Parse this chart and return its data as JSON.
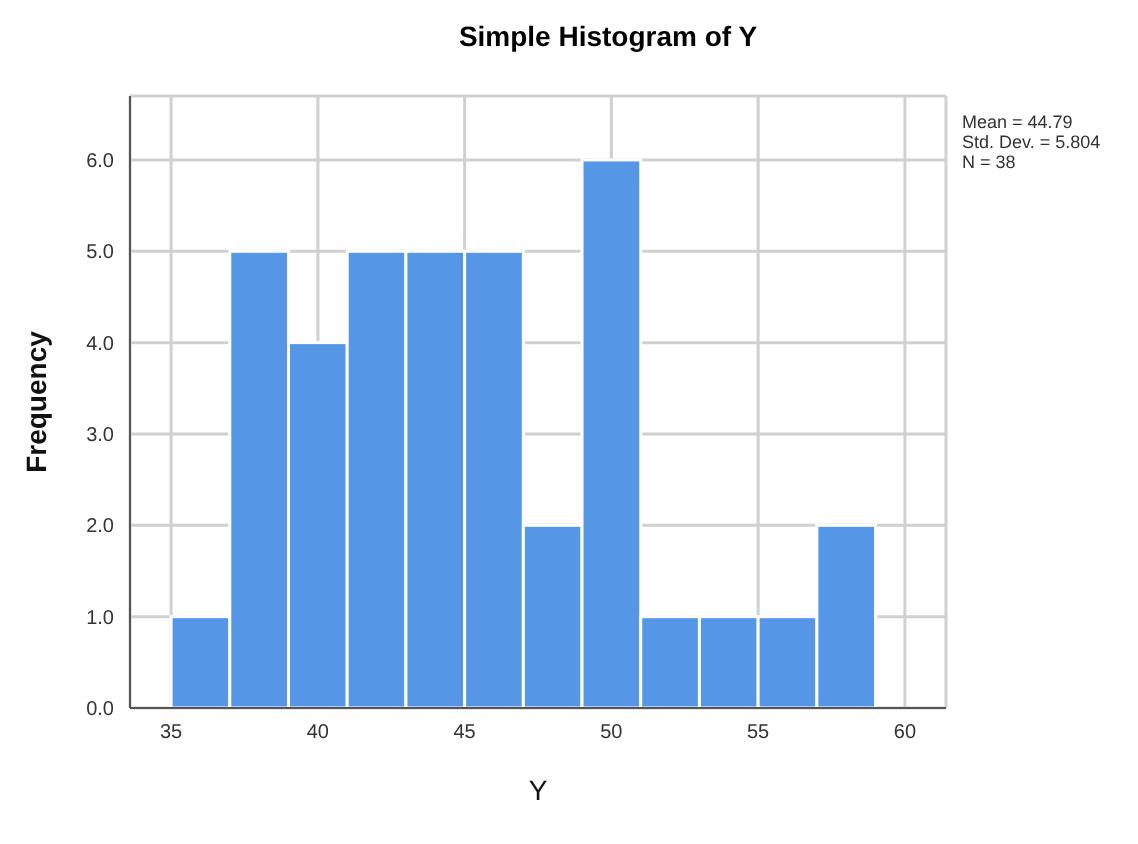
{
  "chart_data": {
    "type": "histogram",
    "title": "Simple Histogram of Y",
    "xlabel": "Y",
    "ylabel": "Frequency",
    "bins": [
      35,
      37,
      39,
      41,
      43,
      45,
      47,
      49,
      51,
      53,
      55,
      57,
      59
    ],
    "values": [
      1,
      5,
      4,
      5,
      5,
      5,
      2,
      6,
      1,
      1,
      1,
      2
    ],
    "color": "#5596e6",
    "xlim": [
      33.6,
      61.4
    ],
    "xticks": [
      35,
      40,
      45,
      50,
      55,
      60
    ],
    "ylim": [
      0,
      6.7
    ],
    "yticks": [
      {
        "value": 0,
        "label": "0.0"
      },
      {
        "value": 1,
        "label": "1.0"
      },
      {
        "value": 2,
        "label": "2.0"
      },
      {
        "value": 3,
        "label": "3.0"
      },
      {
        "value": 4,
        "label": "4.0"
      },
      {
        "value": 5,
        "label": "5.0"
      },
      {
        "value": 6,
        "label": "6.0"
      }
    ],
    "grid": true,
    "annotations": [
      "Mean = 44.79",
      "Std. Dev. = 5.804",
      "N = 38"
    ]
  }
}
